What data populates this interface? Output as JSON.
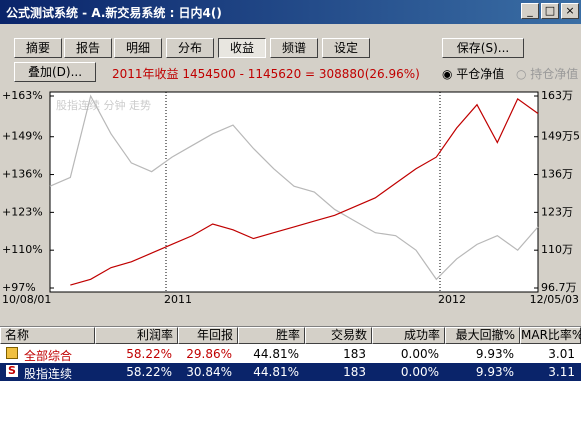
{
  "title_bar": {
    "title": "公式测试系统 - A.新交易系统 : 日内4()"
  },
  "tabs": [
    "摘要",
    "报告",
    "明细",
    "分布",
    "收益",
    "频谱",
    "设定"
  ],
  "active_tab": 4,
  "buttons": {
    "save": "保存(S)...",
    "overlay": "叠加(D)..."
  },
  "summary": "2011年收益 1454500 - 1145620 = 308880(26.96%)",
  "radio": [
    "平仓净值",
    "持仓净值"
  ],
  "chart": {
    "type": "line",
    "legend": "股指连续 分钟 走势",
    "ylim": [
      97,
      163
    ],
    "yticks": [
      {
        "value": 163,
        "label": "+163%"
      },
      {
        "value": 149,
        "label": "+149%"
      },
      {
        "value": 136,
        "label": "+136%"
      },
      {
        "value": 123,
        "label": "+123%"
      },
      {
        "value": 110,
        "label": "+110%"
      },
      {
        "value": 97,
        "label": "+97%"
      }
    ],
    "y2ticks": [
      {
        "value": 163,
        "label": "163万"
      },
      {
        "value": 149,
        "label": "149万5"
      },
      {
        "value": 136,
        "label": "136万"
      },
      {
        "value": 123,
        "label": "123万"
      },
      {
        "value": 110,
        "label": "110万"
      },
      {
        "value": 97,
        "label": "96.7万"
      }
    ],
    "xlabels": [
      "10/08/01",
      "2011",
      "2012",
      "12/05/03"
    ],
    "series": [
      {
        "color": "#b8b8b8",
        "values": [
          132,
          135,
          163,
          150,
          140,
          137,
          142,
          146,
          150,
          153,
          145,
          138,
          132,
          130,
          124,
          120,
          116,
          115,
          110,
          100,
          107,
          112,
          115,
          110,
          118
        ]
      },
      {
        "color": "#c00000",
        "values": [
          null,
          98,
          100,
          104,
          106,
          109,
          112,
          115,
          119,
          117,
          114,
          116,
          118,
          120,
          122,
          125,
          128,
          133,
          138,
          142,
          152,
          160,
          147,
          162,
          157
        ]
      }
    ]
  },
  "table": {
    "columns": [
      "名称",
      "利润率",
      "年回报",
      "胜率",
      "交易数",
      "成功率",
      "最大回撤%",
      "MAR比率%"
    ],
    "rows": [
      [
        "全部综合",
        "58.22%",
        "29.86%",
        "44.81%",
        "183",
        "0.00%",
        "9.93%",
        "3.01"
      ],
      [
        "股指连续",
        "58.22%",
        "30.84%",
        "44.81%",
        "183",
        "0.00%",
        "9.93%",
        "3.11"
      ]
    ]
  }
}
